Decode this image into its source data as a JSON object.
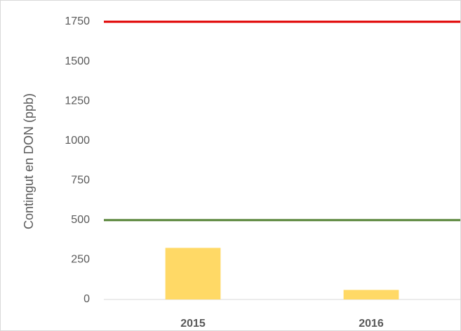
{
  "chart_data": {
    "type": "bar",
    "ylabel": "Contingut en DON (ppb)",
    "categories": [
      "2015",
      "2016"
    ],
    "values": [
      325,
      60
    ],
    "color": "#ffd966",
    "ylim": [
      0,
      1750
    ],
    "yticks": [
      0,
      250,
      500,
      750,
      1000,
      1250,
      1500,
      1750
    ],
    "grid": false,
    "reference_lines": [
      {
        "value": 1750,
        "color": "#e00000"
      },
      {
        "value": 500,
        "color": "#548235"
      }
    ]
  }
}
